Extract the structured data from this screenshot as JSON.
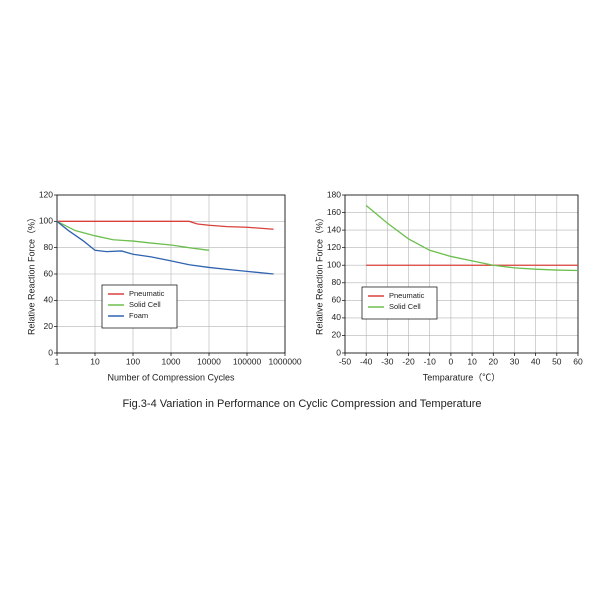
{
  "chart_data": [
    {
      "type": "line",
      "xlabel": "Number of Compression Cycles",
      "ylabel": "Relative Reaction Force（%）",
      "xscale": "log",
      "xlim": [
        1,
        1000000
      ],
      "xticks": [
        1,
        10,
        100,
        1000,
        10000,
        100000,
        1000000
      ],
      "ylim": [
        0,
        120
      ],
      "yticks": [
        0,
        20,
        40,
        60,
        80,
        100,
        120
      ],
      "grid": true,
      "legend": "lower left",
      "series": [
        {
          "name": "Pneumatic",
          "color": "#d9403a",
          "x": [
            1,
            10,
            100,
            1000,
            3000,
            5000,
            10000,
            30000,
            100000,
            500000
          ],
          "values": [
            100,
            100,
            100,
            100,
            100,
            98,
            97,
            96,
            95.5,
            94
          ]
        },
        {
          "name": "Solid Cell",
          "color": "#6cbf4e",
          "x": [
            1,
            3,
            10,
            30,
            100,
            300,
            1000,
            3000,
            10000
          ],
          "values": [
            100,
            93,
            89,
            86,
            85,
            83.5,
            82,
            80,
            78
          ]
        },
        {
          "name": "Foam",
          "color": "#2f63b0",
          "x": [
            1,
            2,
            5,
            10,
            20,
            50,
            100,
            300,
            1000,
            3000,
            10000,
            30000,
            100000,
            500000
          ],
          "values": [
            100,
            93,
            85,
            78,
            77,
            77.5,
            75,
            73,
            70,
            67,
            65,
            63.5,
            62,
            60
          ]
        }
      ]
    },
    {
      "type": "line",
      "xlabel": "Temparature（℃）",
      "ylabel": "Relative Reaction Force（%）",
      "xscale": "linear",
      "xlim": [
        -50,
        60
      ],
      "xticks": [
        -50,
        -40,
        -30,
        -20,
        -10,
        0,
        10,
        20,
        30,
        40,
        50,
        60
      ],
      "ylim": [
        0,
        180
      ],
      "yticks": [
        0,
        20,
        40,
        60,
        80,
        100,
        120,
        140,
        160,
        180
      ],
      "grid": true,
      "legend": "center left",
      "series": [
        {
          "name": "Pneumatic",
          "color": "#d9403a",
          "x": [
            -40,
            60
          ],
          "values": [
            100,
            100
          ]
        },
        {
          "name": "Solid Cell",
          "color": "#6cbf4e",
          "x": [
            -40,
            -30,
            -20,
            -10,
            0,
            10,
            20,
            30,
            40,
            50,
            60
          ],
          "values": [
            168,
            148,
            130,
            117,
            110,
            105,
            100,
            97,
            95.5,
            94.5,
            94
          ]
        }
      ]
    }
  ],
  "caption": "Fig.3-4  Variation in Performance on Cyclic Compression and Temperature"
}
